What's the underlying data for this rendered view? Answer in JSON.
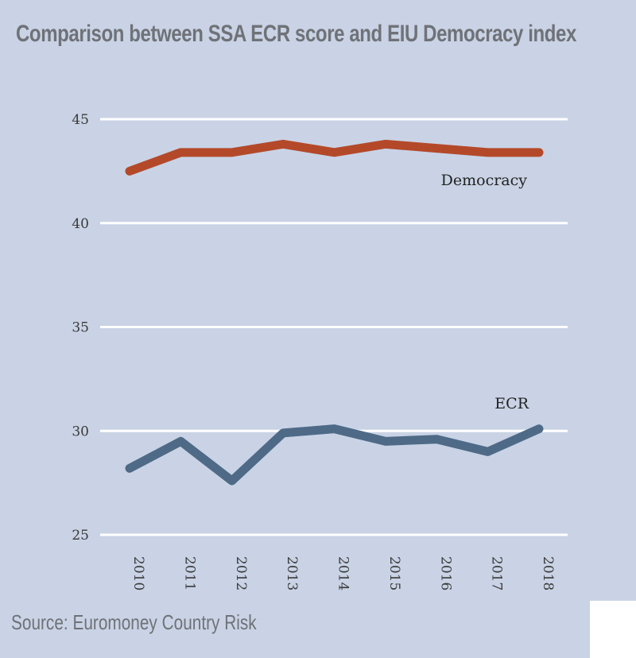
{
  "title": "Comparison between SSA ECR score and EIU Democracy index",
  "source": "Source: Euromoney Country Risk",
  "chart_data": {
    "type": "line",
    "title": "Comparison between SSA ECR score and EIU Democracy index",
    "x": [
      "2010",
      "2011",
      "2012",
      "2013",
      "2014",
      "2015",
      "2016",
      "2017",
      "2018"
    ],
    "ylim": [
      25,
      45
    ],
    "yticks": [
      "25",
      "30",
      "35",
      "40",
      "45"
    ],
    "grid": true,
    "series": [
      {
        "name": "Democracy",
        "color": "#b4492a",
        "values": [
          42.5,
          43.4,
          43.4,
          43.8,
          43.4,
          43.8,
          43.6,
          43.4,
          43.4
        ]
      },
      {
        "name": "ECR",
        "color": "#4e6a87",
        "values": [
          28.2,
          29.5,
          27.6,
          29.9,
          30.1,
          29.5,
          29.6,
          29.0,
          30.1
        ]
      }
    ]
  }
}
